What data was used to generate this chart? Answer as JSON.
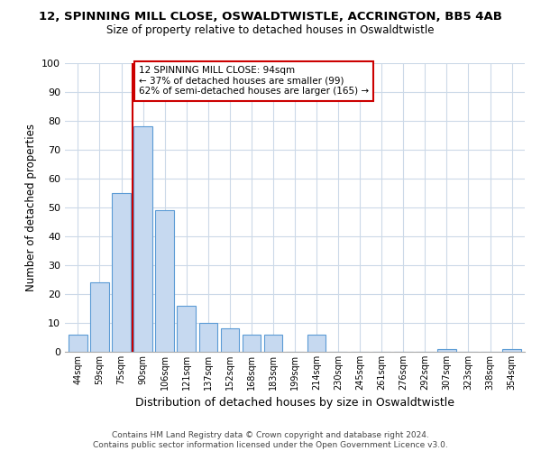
{
  "title": "12, SPINNING MILL CLOSE, OSWALDTWISTLE, ACCRINGTON, BB5 4AB",
  "subtitle": "Size of property relative to detached houses in Oswaldtwistle",
  "xlabel": "Distribution of detached houses by size in Oswaldtwistle",
  "ylabel": "Number of detached properties",
  "bar_labels": [
    "44sqm",
    "59sqm",
    "75sqm",
    "90sqm",
    "106sqm",
    "121sqm",
    "137sqm",
    "152sqm",
    "168sqm",
    "183sqm",
    "199sqm",
    "214sqm",
    "230sqm",
    "245sqm",
    "261sqm",
    "276sqm",
    "292sqm",
    "307sqm",
    "323sqm",
    "338sqm",
    "354sqm"
  ],
  "bar_values": [
    6,
    24,
    55,
    78,
    49,
    16,
    10,
    8,
    6,
    6,
    0,
    6,
    0,
    0,
    0,
    0,
    0,
    1,
    0,
    0,
    1
  ],
  "bar_color": "#c6d9f0",
  "bar_edge_color": "#5b9bd5",
  "vline_x_index": 3,
  "vline_color": "#cc0000",
  "annotation_text": "12 SPINNING MILL CLOSE: 94sqm\n← 37% of detached houses are smaller (99)\n62% of semi-detached houses are larger (165) →",
  "annotation_box_edgecolor": "#cc0000",
  "annotation_box_facecolor": "#ffffff",
  "ylim": [
    0,
    100
  ],
  "yticks": [
    0,
    10,
    20,
    30,
    40,
    50,
    60,
    70,
    80,
    90,
    100
  ],
  "footer_text": "Contains HM Land Registry data © Crown copyright and database right 2024.\nContains public sector information licensed under the Open Government Licence v3.0.",
  "background_color": "#ffffff",
  "grid_color": "#ccd9e8"
}
